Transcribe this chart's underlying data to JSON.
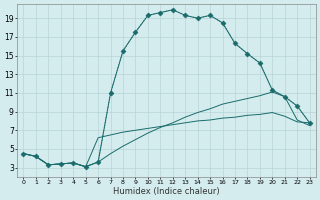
{
  "bg_color": "#d4ecee",
  "grid_color": "#b8d4d6",
  "line_color": "#1a6b6b",
  "xlabel": "Humidex (Indice chaleur)",
  "xlim": [
    -0.5,
    23.5
  ],
  "ylim": [
    2,
    20.5
  ],
  "xticks": [
    0,
    1,
    2,
    3,
    4,
    5,
    6,
    7,
    8,
    9,
    10,
    11,
    12,
    13,
    14,
    15,
    16,
    17,
    18,
    19,
    20,
    21,
    22,
    23
  ],
  "yticks": [
    3,
    5,
    7,
    9,
    11,
    13,
    15,
    17,
    19
  ],
  "line1_dotted": {
    "x": [
      0,
      1,
      2,
      3,
      4,
      5,
      6,
      7,
      8,
      9,
      10,
      11,
      12,
      13,
      14,
      15,
      16,
      17,
      18,
      19,
      20,
      21,
      22,
      23
    ],
    "y": [
      4.5,
      4.2,
      3.3,
      3.4,
      3.5,
      3.1,
      3.6,
      11.0,
      15.5,
      17.5,
      19.3,
      19.6,
      19.9,
      19.3,
      19.0,
      19.3,
      18.5,
      16.3,
      15.2,
      14.2,
      11.3,
      10.6,
      9.6,
      7.8
    ],
    "marker": "D",
    "linestyle": ":",
    "markersize": 2.5
  },
  "line2_solid_sharp": {
    "x": [
      0,
      1,
      2,
      3,
      4,
      5,
      6,
      7,
      8,
      9,
      10,
      11,
      12,
      13,
      14,
      15,
      16,
      17,
      18,
      19,
      20,
      21,
      22,
      23
    ],
    "y": [
      4.5,
      4.2,
      3.3,
      3.4,
      3.5,
      3.1,
      3.6,
      11.0,
      15.5,
      17.5,
      19.3,
      19.6,
      19.9,
      19.3,
      19.0,
      19.3,
      18.5,
      16.3,
      15.2,
      14.2,
      11.3,
      10.6,
      9.6,
      7.8
    ],
    "marker": "D",
    "linestyle": "-",
    "markersize": 2.5
  },
  "line3_gradual": {
    "x": [
      0,
      1,
      2,
      3,
      4,
      5,
      6,
      7,
      8,
      9,
      10,
      11,
      12,
      13,
      14,
      15,
      16,
      17,
      18,
      19,
      20,
      21,
      22,
      23
    ],
    "y": [
      4.5,
      4.2,
      3.3,
      3.4,
      3.5,
      3.1,
      3.6,
      4.5,
      5.3,
      6.0,
      6.7,
      7.3,
      7.8,
      8.4,
      8.9,
      9.3,
      9.8,
      10.1,
      10.4,
      10.7,
      11.1,
      10.6,
      8.1,
      7.5
    ],
    "marker": null,
    "linestyle": "-",
    "markersize": 2
  },
  "line4_flat": {
    "x": [
      0,
      1,
      2,
      3,
      4,
      5,
      6,
      7,
      8,
      9,
      10,
      11,
      12,
      13,
      14,
      15,
      16,
      17,
      18,
      19,
      20,
      21,
      22,
      23
    ],
    "y": [
      4.5,
      4.2,
      3.3,
      3.4,
      3.5,
      3.1,
      6.2,
      6.5,
      6.8,
      7.0,
      7.2,
      7.4,
      7.6,
      7.8,
      8.0,
      8.1,
      8.3,
      8.4,
      8.6,
      8.7,
      8.9,
      8.5,
      7.9,
      7.8
    ],
    "marker": null,
    "linestyle": "-",
    "markersize": 2
  }
}
